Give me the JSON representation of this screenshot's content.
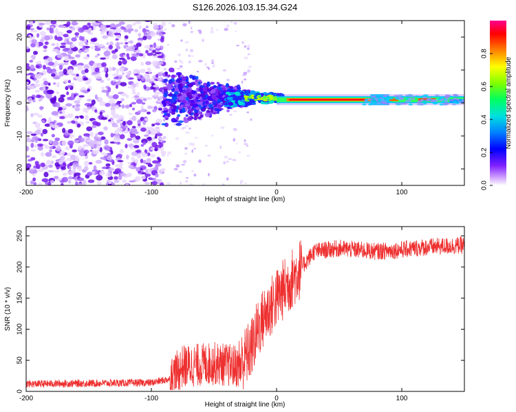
{
  "title": "S126.2026.103.15.34.G24",
  "chart_data": [
    {
      "type": "heatmap",
      "name": "spectrogram",
      "xlabel": "Height of straight line (km)",
      "ylabel": "Frequency (Hz)",
      "xlim": [
        -200,
        150
      ],
      "ylim": [
        -25,
        25
      ],
      "xticks": [
        -200,
        -100,
        0,
        100
      ],
      "xtick_labels": [
        "-200",
        "-100",
        "0",
        "100"
      ],
      "yticks": [
        -20,
        -10,
        0,
        10,
        20
      ],
      "ytick_labels": [
        "-20",
        "-10",
        "0",
        "10",
        "20"
      ],
      "colorbar": {
        "label": "Normalized spectral amplitude",
        "range": [
          0,
          1
        ],
        "ticks": [
          0.0,
          0.2,
          0.4,
          0.6,
          0.8
        ],
        "tick_labels": [
          "0.0",
          "0.2",
          "0.4",
          "0.6",
          "0.8"
        ],
        "colors": [
          "#ffffff",
          "#c080ff",
          "#6000e0",
          "#0000ff",
          "#00c0ff",
          "#00ff80",
          "#80ff00",
          "#ffff00",
          "#ff8000",
          "#ff0000",
          "#ff0080"
        ]
      },
      "regions": [
        {
          "x_range": [
            -200,
            -90
          ],
          "freq_spread": 25,
          "level": 0.25,
          "description": "broadband noise"
        },
        {
          "x_range": [
            -90,
            -30
          ],
          "freq_spread": 10,
          "level": 0.3
        },
        {
          "x_range": [
            -30,
            0
          ],
          "freq_center": 1.5,
          "freq_spread": 2,
          "level": 0.5
        },
        {
          "x_range": [
            0,
            150
          ],
          "freq_center": 1,
          "freq_spread": 1,
          "level": 0.9
        }
      ],
      "peak_freq_hz": 1
    },
    {
      "type": "line",
      "name": "snr",
      "xlabel": "Height of straight line (km)",
      "ylabel": "SNR (10 * v/v)",
      "xlim": [
        -200,
        150
      ],
      "ylim": [
        0,
        265
      ],
      "xticks": [
        -200,
        -100,
        0,
        100
      ],
      "xtick_labels": [
        "-200",
        "-100",
        "0",
        "100"
      ],
      "yticks": [
        0,
        50,
        100,
        150,
        200,
        250
      ],
      "ytick_labels": [
        "0",
        "50",
        "100",
        "150",
        "200",
        "250"
      ],
      "color": "#ee3030",
      "trend": {
        "x": [
          -200,
          -100,
          -85,
          -75,
          -50,
          -30,
          -20,
          -15,
          -10,
          0,
          10,
          20,
          30,
          50,
          80,
          100,
          120,
          150
        ],
        "y": [
          12,
          14,
          20,
          40,
          45,
          40,
          70,
          100,
          120,
          150,
          175,
          200,
          225,
          230,
          225,
          228,
          232,
          235
        ]
      }
    }
  ]
}
